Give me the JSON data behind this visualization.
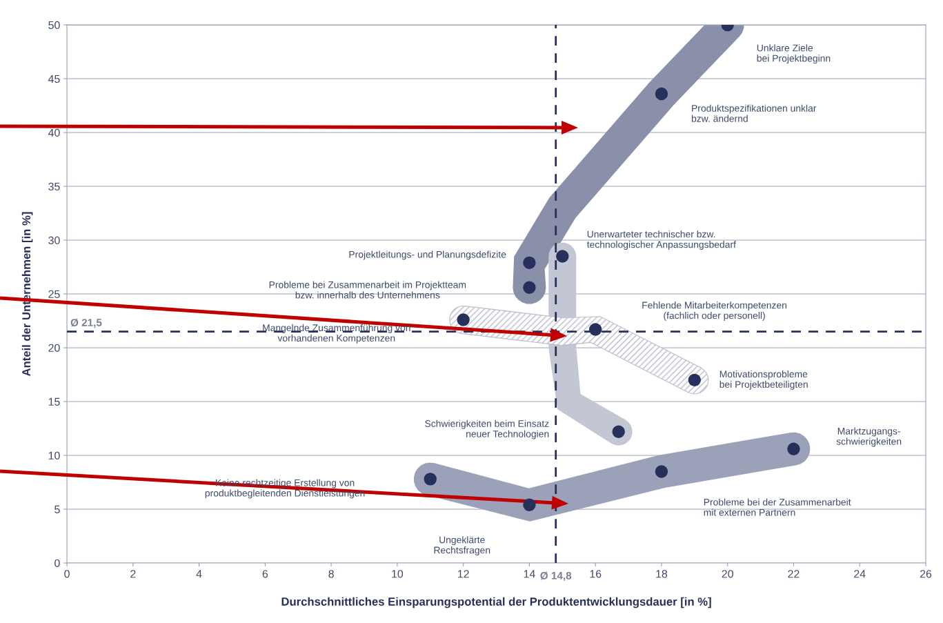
{
  "chart_data": {
    "type": "scatter",
    "xlabel": "Durchschnittliches Einsparungspotential der Produktentwicklungsdauer [in %]",
    "ylabel": "Anteil der Unternehmen [in %]",
    "series": [
      {
        "color": "#26305a",
        "x": [
          20,
          18,
          14,
          14,
          15,
          12,
          16,
          19,
          16.7,
          22,
          18,
          11,
          14
        ],
        "values": [
          50,
          43.6,
          27.9,
          25.6,
          28.5,
          22.6,
          21.7,
          17,
          12.2,
          10.6,
          8.5,
          7.8,
          5.4
        ]
      }
    ],
    "marker": "circle",
    "xlim": [
      0,
      26
    ],
    "xticks": [
      0,
      2,
      4,
      6,
      8,
      10,
      12,
      14,
      16,
      18,
      20,
      22,
      24,
      26
    ],
    "ylim": [
      0,
      50
    ],
    "yticks": [
      0,
      5,
      10,
      15,
      20,
      25,
      30,
      35,
      40,
      45,
      50
    ],
    "grid": "y",
    "ref_lines": [
      {
        "axis": "x",
        "value": 14.8,
        "label": "Ø 14,8",
        "color": "#26305a",
        "line_style": "dashed"
      },
      {
        "axis": "y",
        "value": 21.5,
        "label": "Ø 21,5",
        "color": "#26305a",
        "line_style": "dashed"
      }
    ],
    "annotations": [
      "Unklare Ziele\nbei Projektbeginn",
      "Produktspezifikationen unklar\nbzw. ändernd",
      "Projektleitungs- und Planungsdefizite",
      "Probleme bei Zusammenarbeit im Projektteam\nbzw. innerhalb des Unternehmens",
      "Unerwarteter technischer bzw.\ntechnologischer Anpassungsbedarf",
      "Mangelnde Zusammenführung von\nvorhandenen Kompetenzen",
      "Fehlende Mitarbeiterkompetenzen\n(fachlich oder personell)",
      "Motivationsprobleme\nbei Projektbeteiligten",
      "Schwierigkeiten beim Einsatz\nneuer Technologien",
      "Marktzugangs-\nschwierigkeiten",
      "Probleme bei der Zusammenarbeit\nmit externen Partnern",
      "Keine rechtzeitige Erstellung von\nproduktbegleitenden Dienstleistungen",
      "Ungeklärte\nRechtsfragen"
    ]
  }
}
